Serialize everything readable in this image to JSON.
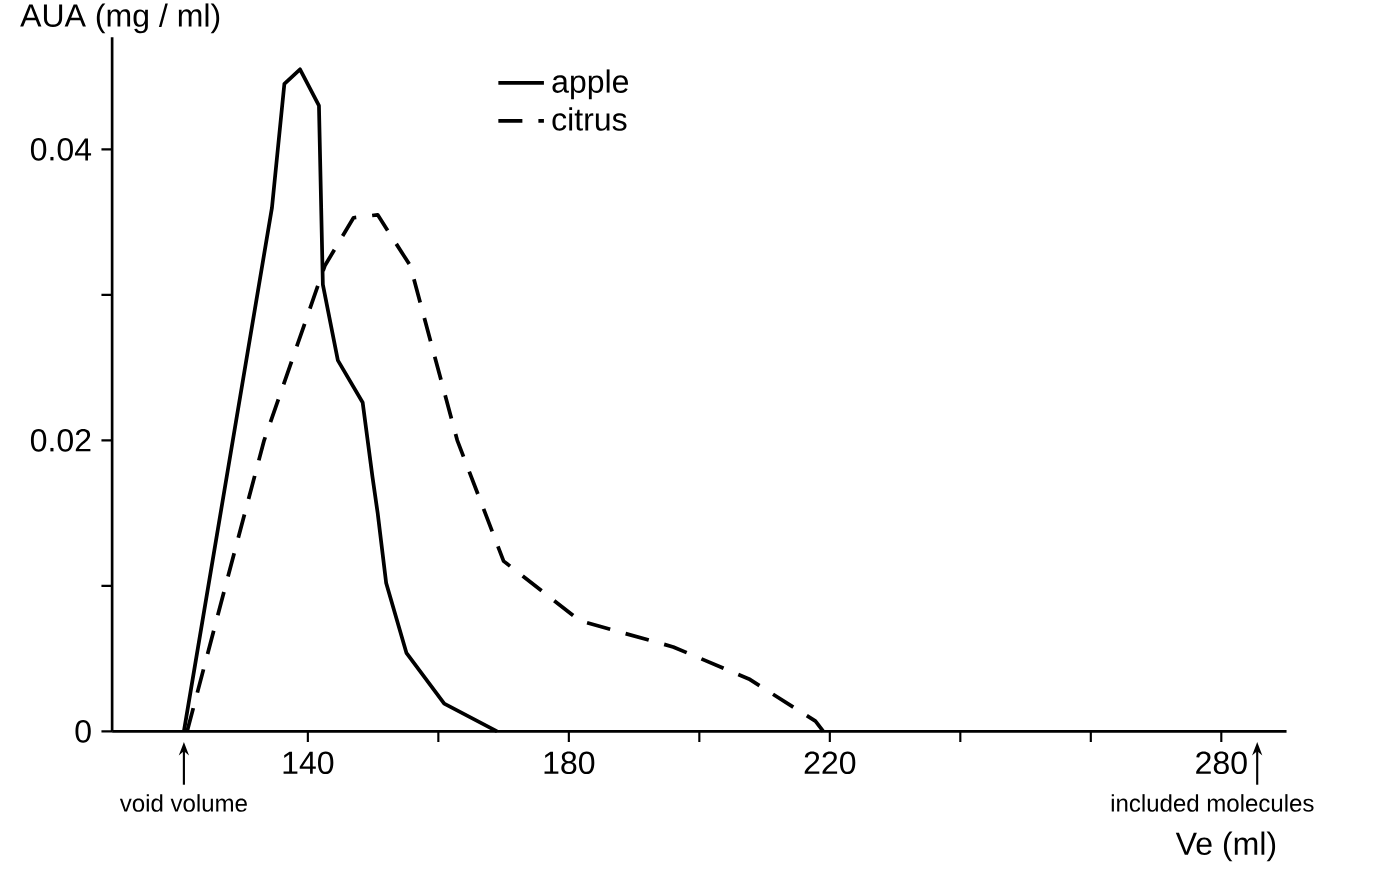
{
  "chart_data": {
    "type": "line",
    "xlabel": "Ve (ml)",
    "ylabel": "AUA (mg / ml)",
    "xlim": [
      110,
      290
    ],
    "ylim": [
      0,
      0.0477
    ],
    "xticks": [
      140,
      {
        "value": 160,
        "label": null
      },
      180,
      {
        "value": 200,
        "label": null
      },
      220,
      {
        "value": 240,
        "label": null
      },
      {
        "value": 260,
        "label": null
      },
      280
    ],
    "yticks": [
      0,
      {
        "value": 0.01,
        "label": null
      },
      0.02,
      {
        "value": 0.03,
        "label": null
      },
      0.04
    ],
    "legend": "top",
    "marker": "none",
    "series": [
      {
        "name": "apple",
        "color": "#000000",
        "line_style": "solid",
        "x": [
          121,
          134.5,
          136.4,
          138.8,
          141.7,
          142.3,
          144.6,
          148.4,
          149.9,
          150.7,
          152,
          155.1,
          160.9,
          169
        ],
        "values": [
          0,
          0.036,
          0.0445,
          0.0455,
          0.043,
          0.0307,
          0.0255,
          0.0226,
          0.0175,
          0.015,
          0.0102,
          0.0054,
          0.0019,
          0
        ]
      },
      {
        "name": "citrus",
        "color": "#000000",
        "line_style": "dashed",
        "x": [
          121.5,
          127.5,
          133.3,
          142.6,
          147,
          150.7,
          155.7,
          162.9,
          170,
          181.7,
          196,
          207.6,
          217.8,
          219
        ],
        "values": [
          0,
          0.0102,
          0.02,
          0.032,
          0.0353,
          0.0355,
          0.032,
          0.02,
          0.0117,
          0.0076,
          0.0058,
          0.0036,
          0.0007,
          0
        ]
      }
    ],
    "annotations": [
      {
        "text": "void volume",
        "x": 121,
        "y": 0
      },
      "included molecules"
    ]
  }
}
